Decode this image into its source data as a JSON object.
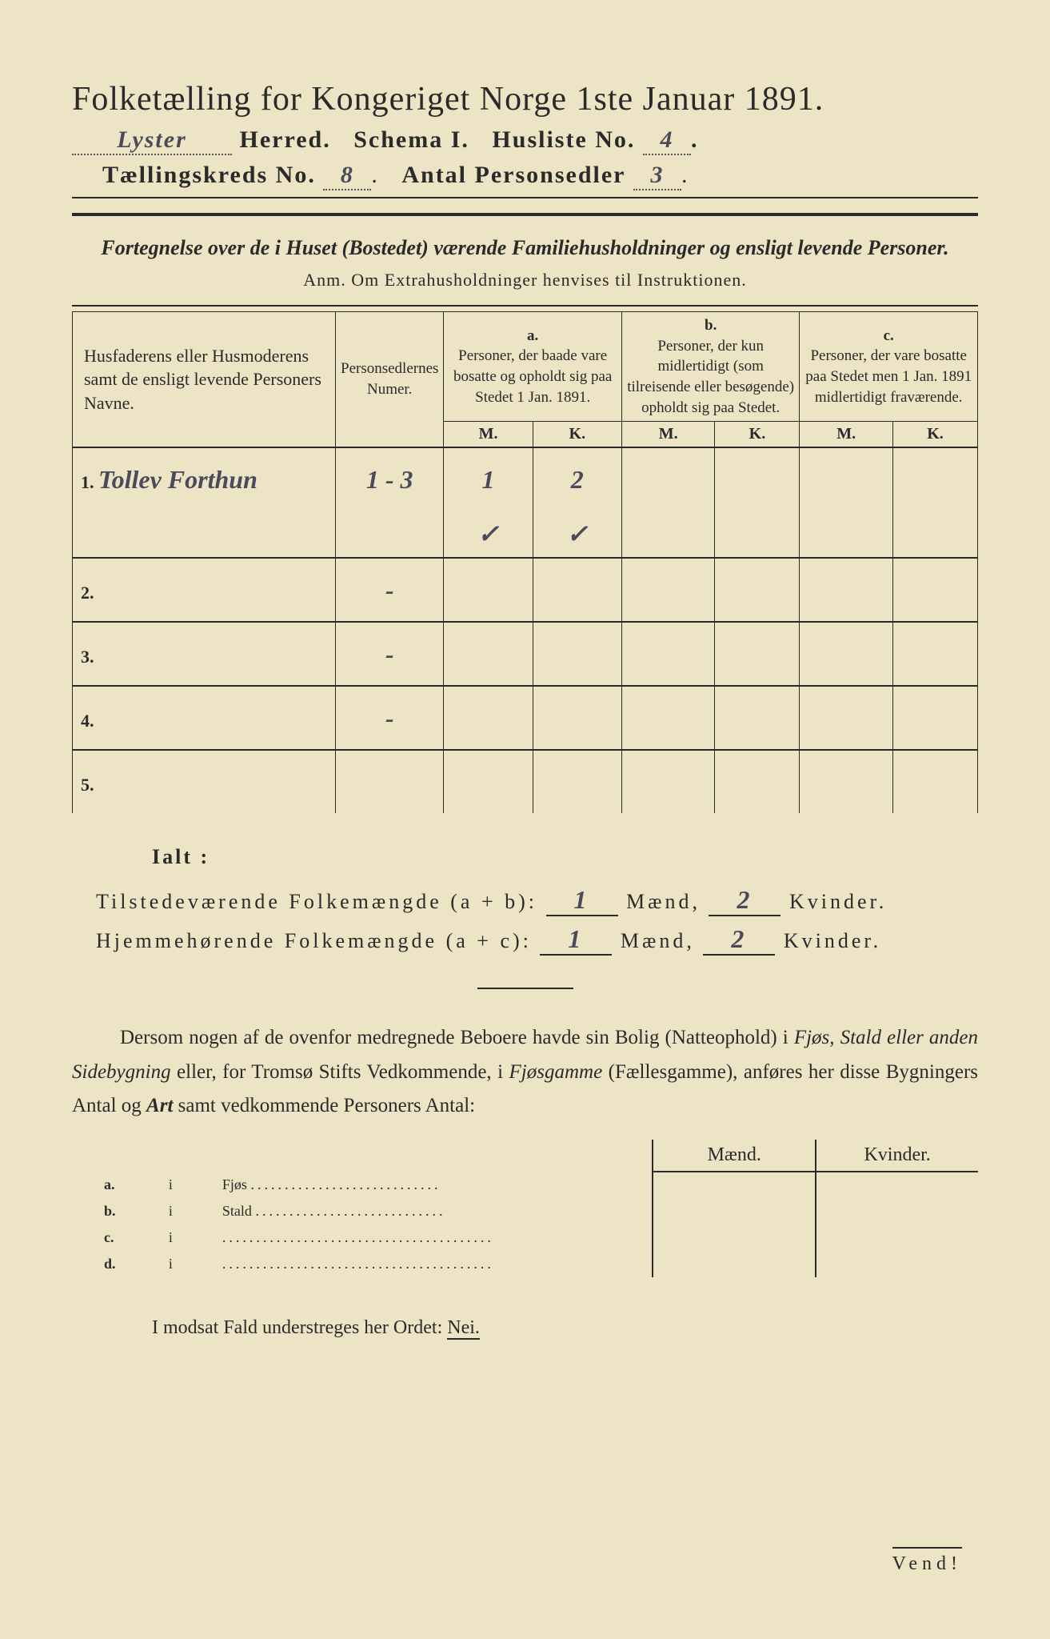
{
  "title": "Folketælling for Kongeriget Norge 1ste Januar 1891.",
  "herred_hand": "Lyster",
  "herred_label": "Herred.",
  "schema_label": "Schema I.",
  "husliste_label": "Husliste No.",
  "husliste_hand": "4",
  "kreds_label": "Tællingskreds No.",
  "kreds_hand": "8",
  "antal_label": "Antal Personsedler",
  "antal_hand": "3",
  "subtitle": "Fortegnelse over de i Huset (Bostedet) værende Familiehusholdninger og ensligt levende Personer.",
  "anm": "Anm.  Om Extrahusholdninger henvises til Instruktionen.",
  "table": {
    "col1": "Husfaderens eller Husmoderens samt de ensligt levende Personers Navne.",
    "col2": "Personsedlernes Numer.",
    "col_a_hdr": "a.",
    "col_a": "Personer, der baade vare bosatte og opholdt sig paa Stedet 1 Jan. 1891.",
    "col_b_hdr": "b.",
    "col_b": "Personer, der kun midlertidigt (som tilreisende eller besøgende) opholdt sig paa Stedet.",
    "col_c_hdr": "c.",
    "col_c": "Personer, der vare bosatte paa Stedet men 1 Jan. 1891 midlertidigt fraværende.",
    "M": "M.",
    "K": "K.",
    "rows": [
      {
        "n": "1.",
        "name": "Tollev Forthun",
        "num": "1 - 3",
        "aM": "1",
        "aK": "2",
        "aM2": "✓",
        "aK2": "✓"
      },
      {
        "n": "2.",
        "name": "",
        "num": "-"
      },
      {
        "n": "3.",
        "name": "",
        "num": "-"
      },
      {
        "n": "4.",
        "name": "",
        "num": "-"
      },
      {
        "n": "5.",
        "name": "",
        "num": ""
      }
    ]
  },
  "ialt": "Ialt :",
  "sum1_label": "Tilstedeværende Folkemængde (a + b):",
  "sum1_m": "1",
  "sum1_k": "2",
  "sum2_label": "Hjemmehørende Folkemængde (a + c):",
  "sum2_m": "1",
  "sum2_k": "2",
  "maend": "Mænd,",
  "kvinder": "Kvinder.",
  "para": "Dersom nogen af de ovenfor medregnede Beboere havde sin Bolig (Natteophold) i <i>Fjøs, Stald eller anden Sidebygning</i> eller, for Tromsø Stifts Vedkommende, i <i>Fjøsgamme</i> (Fællesgamme), anføres her disse Bygningers Antal og <b>Art</b> samt vedkommende Personers Antal:",
  "bot": {
    "hd_m": "Mænd.",
    "hd_k": "Kvinder.",
    "rows": [
      {
        "l": "a.",
        "i": "i",
        "t": "Fjøs"
      },
      {
        "l": "b.",
        "i": "i",
        "t": "Stald"
      },
      {
        "l": "c.",
        "i": "i",
        "t": ""
      },
      {
        "l": "d.",
        "i": "i",
        "t": ""
      }
    ]
  },
  "neiline": "I modsat Fald understreges her Ordet:",
  "nei": "Nei.",
  "vend": "Vend!",
  "colors": {
    "paper": "#ede4c5",
    "ink": "#2a2a2a",
    "hand": "#4a4a5a"
  }
}
